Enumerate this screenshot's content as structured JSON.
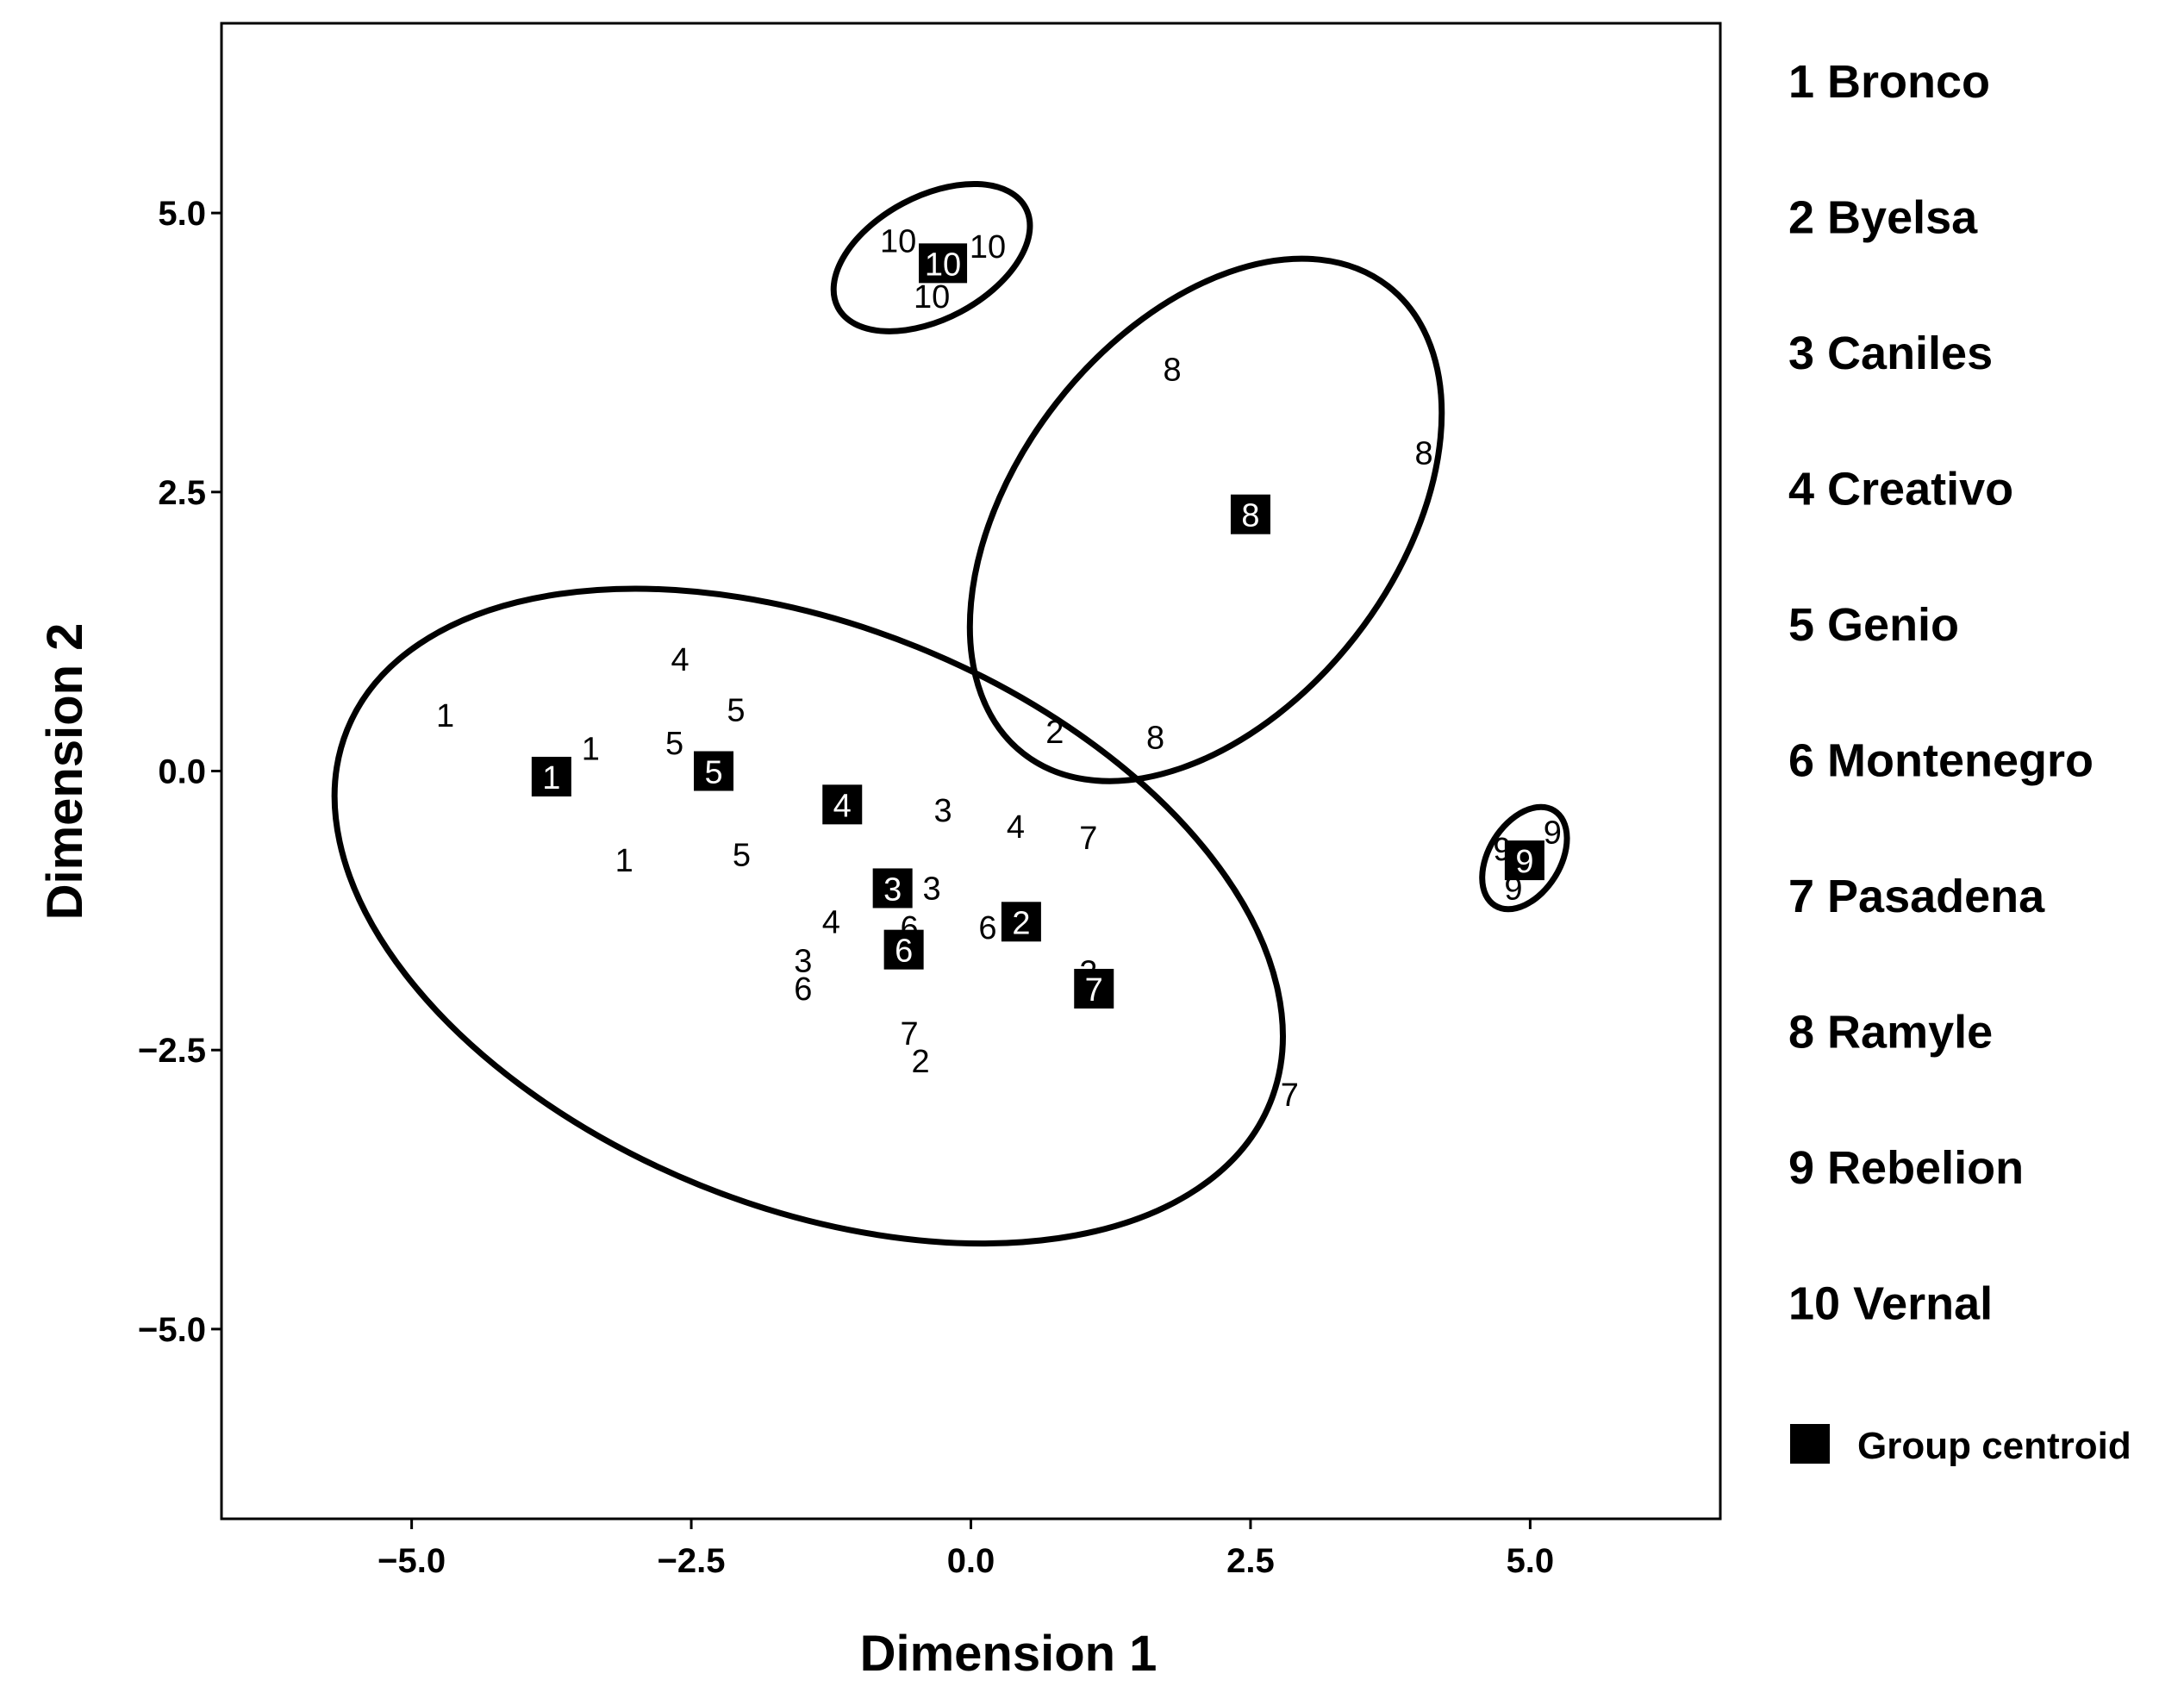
{
  "chart_data": {
    "type": "scatter",
    "xlabel": "Dimension 1",
    "ylabel": "Dimension 2",
    "xlim": [
      -6.7,
      6.7
    ],
    "ylim": [
      -6.7,
      6.7
    ],
    "xticks": [
      -5.0,
      -2.5,
      0.0,
      2.5,
      5.0
    ],
    "yticks": [
      -5.0,
      -2.5,
      0.0,
      2.5,
      5.0
    ],
    "xtick_labels": [
      "−5.0",
      "−2.5",
      "0.0",
      "2.5",
      "5.0"
    ],
    "ytick_labels": [
      "−5.0",
      "−2.5",
      "0.0",
      "2.5",
      "5.0"
    ],
    "grid": false,
    "legend": {
      "position": "right",
      "items": [
        {
          "id": "1",
          "label": "1 Bronco"
        },
        {
          "id": "2",
          "label": "2 Byelsa"
        },
        {
          "id": "3",
          "label": "3 Caniles"
        },
        {
          "id": "4",
          "label": "4 Creativo"
        },
        {
          "id": "5",
          "label": "5 Genio"
        },
        {
          "id": "6",
          "label": "6 Montenegro"
        },
        {
          "id": "7",
          "label": "7 Pasadena"
        },
        {
          "id": "8",
          "label": "8 Ramyle"
        },
        {
          "id": "9",
          "label": "9 Rebelion"
        },
        {
          "id": "10",
          "label": "10 Vernal"
        }
      ],
      "centroid_label": "Group centroid"
    },
    "points": [
      {
        "label": "1",
        "x": -4.7,
        "y": 0.5
      },
      {
        "label": "1",
        "x": -3.4,
        "y": 0.2
      },
      {
        "label": "1",
        "x": -3.1,
        "y": -0.8
      },
      {
        "label": "4",
        "x": -2.6,
        "y": 1.0
      },
      {
        "label": "5",
        "x": -2.1,
        "y": 0.55
      },
      {
        "label": "5",
        "x": -2.65,
        "y": 0.25
      },
      {
        "label": "5",
        "x": -2.05,
        "y": -0.75
      },
      {
        "label": "3",
        "x": -0.25,
        "y": -0.35
      },
      {
        "label": "4",
        "x": 0.4,
        "y": -0.5
      },
      {
        "label": "7",
        "x": 1.05,
        "y": -0.6
      },
      {
        "label": "3",
        "x": -0.35,
        "y": -1.05
      },
      {
        "label": "4",
        "x": -1.25,
        "y": -1.35
      },
      {
        "label": "6",
        "x": -0.55,
        "y": -1.4
      },
      {
        "label": "6",
        "x": 0.15,
        "y": -1.4
      },
      {
        "label": "3",
        "x": -1.5,
        "y": -1.7
      },
      {
        "label": "6",
        "x": -1.5,
        "y": -1.95
      },
      {
        "label": "2",
        "x": 1.05,
        "y": -1.8
      },
      {
        "label": "7",
        "x": -0.55,
        "y": -2.35
      },
      {
        "label": "2",
        "x": -0.45,
        "y": -2.6
      },
      {
        "label": "7",
        "x": 2.85,
        "y": -2.9
      },
      {
        "label": "2",
        "x": 0.75,
        "y": 0.35
      },
      {
        "label": "8",
        "x": 1.65,
        "y": 0.3
      },
      {
        "label": "8",
        "x": 1.8,
        "y": 3.6
      },
      {
        "label": "8",
        "x": 4.05,
        "y": 2.85
      },
      {
        "label": "10",
        "x": -0.65,
        "y": 4.75
      },
      {
        "label": "10",
        "x": 0.15,
        "y": 4.7
      },
      {
        "label": "10",
        "x": -0.35,
        "y": 4.25
      },
      {
        "label": "9",
        "x": 4.75,
        "y": -0.7
      },
      {
        "label": "9",
        "x": 5.2,
        "y": -0.55
      },
      {
        "label": "9",
        "x": 4.85,
        "y": -1.05
      }
    ],
    "centroids": [
      {
        "label": "1",
        "x": -3.75,
        "y": -0.05
      },
      {
        "label": "5",
        "x": -2.3,
        "y": 0.0
      },
      {
        "label": "4",
        "x": -1.15,
        "y": -0.3
      },
      {
        "label": "3",
        "x": -0.7,
        "y": -1.05
      },
      {
        "label": "2",
        "x": 0.45,
        "y": -1.35
      },
      {
        "label": "6",
        "x": -0.6,
        "y": -1.6
      },
      {
        "label": "7",
        "x": 1.1,
        "y": -1.95
      },
      {
        "label": "8",
        "x": 2.5,
        "y": 2.3
      },
      {
        "label": "10",
        "x": -0.25,
        "y": 4.55
      },
      {
        "label": "9",
        "x": 4.95,
        "y": -0.8
      }
    ],
    "ellipses": [
      {
        "name": "ellipse-main-group",
        "cx": -1.45,
        "cy": -1.3,
        "rx": 4.45,
        "ry": 2.6,
        "angle_deg": -22
      },
      {
        "name": "ellipse-ramyle-group",
        "cx": 2.1,
        "cy": 2.25,
        "rx": 2.65,
        "ry": 1.7,
        "angle_deg": 52
      },
      {
        "name": "ellipse-vernal-group",
        "cx": -0.35,
        "cy": 4.6,
        "rx": 0.95,
        "ry": 0.55,
        "angle_deg": 28
      },
      {
        "name": "ellipse-rebelion-group",
        "cx": 4.95,
        "cy": -0.78,
        "rx": 0.5,
        "ry": 0.32,
        "angle_deg": 58
      }
    ]
  }
}
